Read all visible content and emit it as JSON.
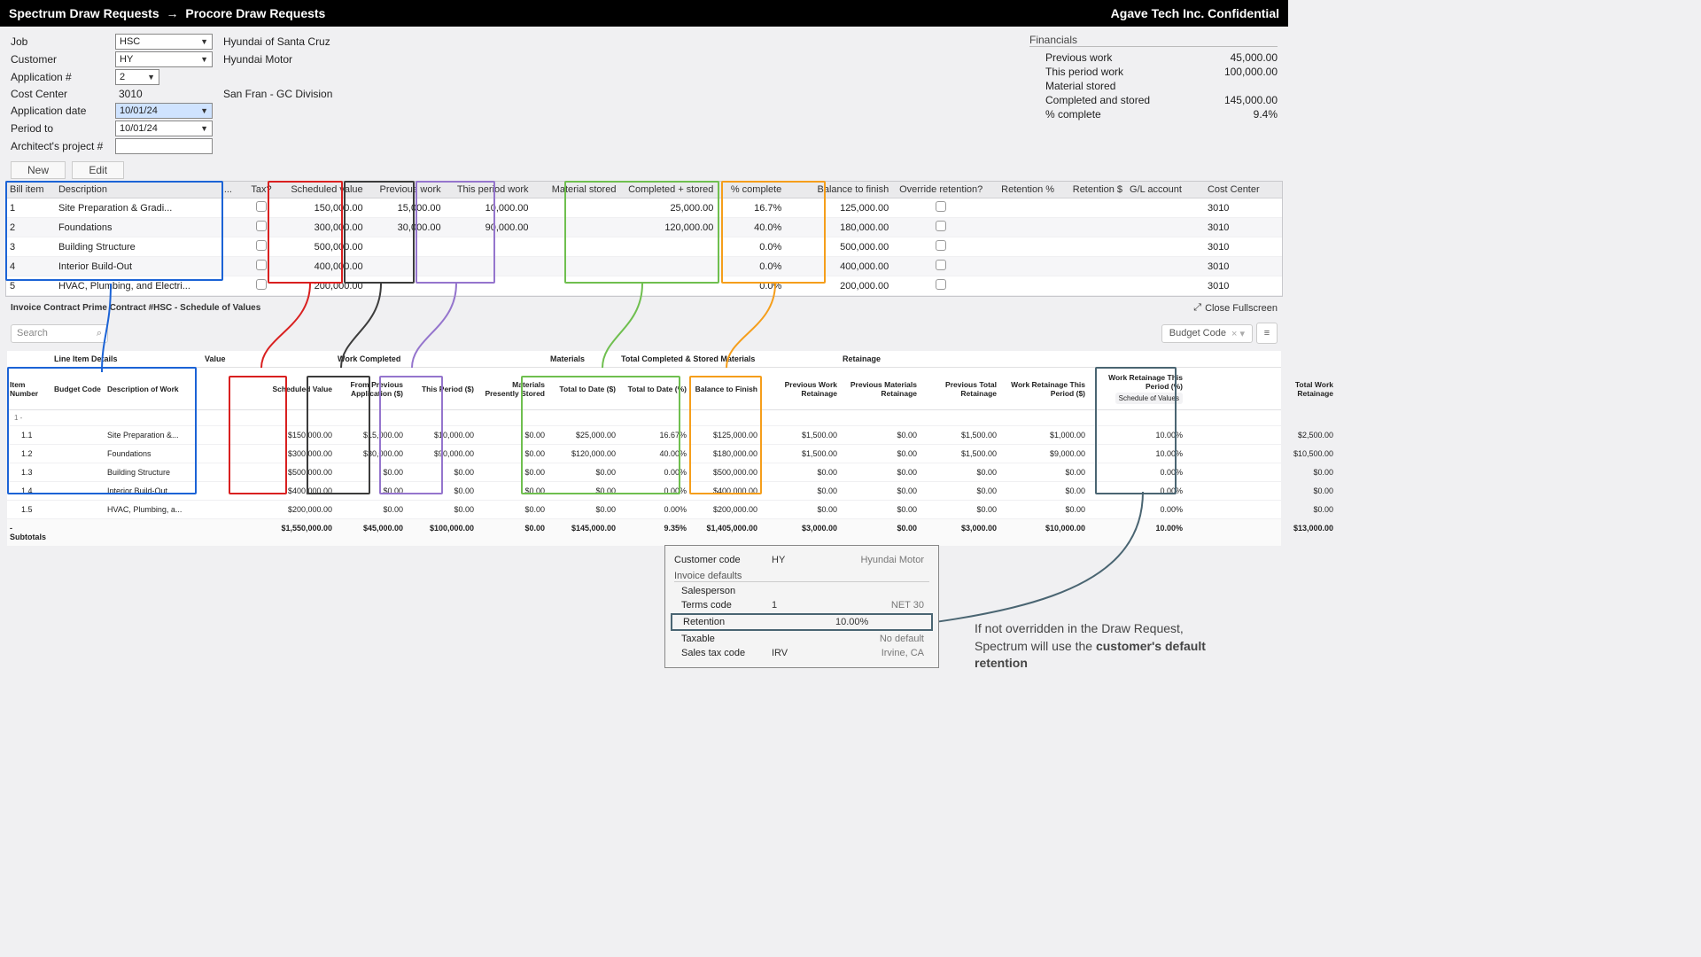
{
  "header": {
    "title_left": "Spectrum Draw Requests",
    "arrow": "→",
    "title_right": "Procore Draw Requests",
    "confidential": "Agave Tech Inc. Confidential"
  },
  "form": {
    "job_label": "Job",
    "job_value": "HSC",
    "job_desc": "Hyundai of Santa Cruz",
    "customer_label": "Customer",
    "customer_value": "HY",
    "customer_desc": "Hyundai Motor",
    "app_no_label": "Application #",
    "app_no_value": "2",
    "cost_center_label": "Cost Center",
    "cost_center_value": "3010",
    "cost_center_desc": "San Fran - GC Division",
    "app_date_label": "Application date",
    "app_date_value": "10/01/24",
    "period_to_label": "Period to",
    "period_to_value": "10/01/24",
    "arch_proj_label": "Architect's project #",
    "arch_proj_value": ""
  },
  "financials": {
    "title": "Financials",
    "previous_work_label": "Previous work",
    "previous_work_value": "45,000.00",
    "this_period_label": "This period work",
    "this_period_value": "100,000.00",
    "material_stored_label": "Material stored",
    "material_stored_value": "",
    "completed_stored_label": "Completed and stored",
    "completed_stored_value": "145,000.00",
    "pct_complete_label": "% complete",
    "pct_complete_value": "9.4%"
  },
  "buttons": {
    "new": "New",
    "edit": "Edit"
  },
  "spectrum_cols": {
    "bill_item": "Bill item",
    "description": "Description",
    "dots": "...",
    "tax": "Tax?",
    "scheduled_value": "Scheduled value",
    "previous_work": "Previous work",
    "this_period": "This period work",
    "material_stored": "Material stored",
    "completed_stored": "Completed + stored",
    "pct_complete": "% complete",
    "balance_finish": "Balance to finish",
    "override_ret": "Override retention?",
    "ret_pct": "Retention %",
    "ret_amt": "Retention $",
    "gl_account": "G/L account",
    "cost_center": "Cost Center"
  },
  "spectrum_rows": [
    {
      "n": "1",
      "desc": "Site Preparation & Gradi...",
      "sv": "150,000.00",
      "pw": "15,000.00",
      "tp": "10,000.00",
      "ms": "",
      "cs": "25,000.00",
      "pct": "16.7%",
      "bf": "125,000.00",
      "cc": "3010"
    },
    {
      "n": "2",
      "desc": "Foundations",
      "sv": "300,000.00",
      "pw": "30,000.00",
      "tp": "90,000.00",
      "ms": "",
      "cs": "120,000.00",
      "pct": "40.0%",
      "bf": "180,000.00",
      "cc": "3010"
    },
    {
      "n": "3",
      "desc": "Building Structure",
      "sv": "500,000.00",
      "pw": "",
      "tp": "",
      "ms": "",
      "cs": "",
      "pct": "0.0%",
      "bf": "500,000.00",
      "cc": "3010"
    },
    {
      "n": "4",
      "desc": "Interior Build-Out",
      "sv": "400,000.00",
      "pw": "",
      "tp": "",
      "ms": "",
      "cs": "",
      "pct": "0.0%",
      "bf": "400,000.00",
      "cc": "3010"
    },
    {
      "n": "5",
      "desc": "HVAC, Plumbing, and Electri...",
      "sv": "200,000.00",
      "pw": "",
      "tp": "",
      "ms": "",
      "cs": "",
      "pct": "0.0%",
      "bf": "200,000.00",
      "cc": "3010"
    }
  ],
  "sov_title": "Invoice Contract Prime Contract #HSC - Schedule of Values",
  "close_fullscreen": "Close Fullscreen",
  "search_placeholder": "Search",
  "budget_code_label": "Budget Code",
  "procore_groups": {
    "line_item_details": "Line Item Details",
    "value": "Value",
    "work_completed": "Work Completed",
    "materials": "Materials",
    "total_completed": "Total Completed & Stored Materials",
    "retainage": "Retainage"
  },
  "procore_cols": {
    "item_no": "Item Number",
    "budget_code": "Budget Code",
    "desc_work": "Description of Work",
    "scheduled_value": "Scheduled Value",
    "from_prev": "From Previous Application ($)",
    "this_period": "This Period ($)",
    "mat_stored": "Materials Presently Stored",
    "total_to_date_amt": "Total to Date ($)",
    "total_to_date_pct": "Total to Date (%)",
    "balance_finish": "Balance to Finish",
    "prev_work_ret": "Previous Work Retainage",
    "prev_mat_ret": "Previous Materials Retainage",
    "prev_total_ret": "Previous Total Retainage",
    "work_ret_tp_amt": "Work Retainage This Period ($)",
    "work_ret_tp_pct": "Work Retainage This Period (%)",
    "sov_chip": "Schedule of Values",
    "total_work_ret": "Total Work Retainage"
  },
  "procore_section": "1 -",
  "procore_rows": [
    {
      "n": "1.1",
      "desc": "Site Preparation &...",
      "sv": "$150,000.00",
      "fp": "$15,000.00",
      "tp": "$10,000.00",
      "ms": "$0.00",
      "ttd": "$25,000.00",
      "ttp": "16.67%",
      "bf": "$125,000.00",
      "pwr": "$1,500.00",
      "pmr": "$0.00",
      "ptr": "$1,500.00",
      "wrtp": "$1,000.00",
      "wrp": "10.00%",
      "twr": "$2,500.00"
    },
    {
      "n": "1.2",
      "desc": "Foundations",
      "sv": "$300,000.00",
      "fp": "$30,000.00",
      "tp": "$90,000.00",
      "ms": "$0.00",
      "ttd": "$120,000.00",
      "ttp": "40.00%",
      "bf": "$180,000.00",
      "pwr": "$1,500.00",
      "pmr": "$0.00",
      "ptr": "$1,500.00",
      "wrtp": "$9,000.00",
      "wrp": "10.00%",
      "twr": "$10,500.00"
    },
    {
      "n": "1.3",
      "desc": "Building Structure",
      "sv": "$500,000.00",
      "fp": "$0.00",
      "tp": "$0.00",
      "ms": "$0.00",
      "ttd": "$0.00",
      "ttp": "0.00%",
      "bf": "$500,000.00",
      "pwr": "$0.00",
      "pmr": "$0.00",
      "ptr": "$0.00",
      "wrtp": "$0.00",
      "wrp": "0.00%",
      "twr": "$0.00"
    },
    {
      "n": "1.4",
      "desc": "Interior Build-Out",
      "sv": "$400,000.00",
      "fp": "$0.00",
      "tp": "$0.00",
      "ms": "$0.00",
      "ttd": "$0.00",
      "ttp": "0.00%",
      "bf": "$400,000.00",
      "pwr": "$0.00",
      "pmr": "$0.00",
      "ptr": "$0.00",
      "wrtp": "$0.00",
      "wrp": "0.00%",
      "twr": "$0.00"
    },
    {
      "n": "1.5",
      "desc": "HVAC, Plumbing, a...",
      "sv": "$200,000.00",
      "fp": "$0.00",
      "tp": "$0.00",
      "ms": "$0.00",
      "ttd": "$0.00",
      "ttp": "0.00%",
      "bf": "$200,000.00",
      "pwr": "$0.00",
      "pmr": "$0.00",
      "ptr": "$0.00",
      "wrtp": "$0.00",
      "wrp": "0.00%",
      "twr": "$0.00"
    }
  ],
  "procore_subtotals": {
    "label": "- Subtotals",
    "sv": "$1,550,000.00",
    "fp": "$45,000.00",
    "tp": "$100,000.00",
    "ms": "$0.00",
    "ttd": "$145,000.00",
    "ttp": "9.35%",
    "bf": "$1,405,000.00",
    "pwr": "$3,000.00",
    "pmr": "$0.00",
    "ptr": "$3,000.00",
    "wrtp": "$10,000.00",
    "wrp": "10.00%",
    "twr": "$13,000.00"
  },
  "cust_popup": {
    "customer_code_label": "Customer code",
    "customer_code_value": "HY",
    "customer_name": "Hyundai Motor",
    "inv_defaults": "Invoice defaults",
    "salesperson_label": "Salesperson",
    "terms_label": "Terms code",
    "terms_value": "1",
    "terms_desc": "NET 30",
    "retention_label": "Retention",
    "retention_value": "10.00%",
    "taxable_label": "Taxable",
    "taxable_desc": "No default",
    "sales_tax_label": "Sales tax code",
    "sales_tax_value": "IRV",
    "sales_tax_desc": "Irvine, CA"
  },
  "annotation": {
    "line1": "If not overridden in the Draw Request,",
    "line2a": "Spectrum will use the ",
    "line2b": "customer's default retention"
  },
  "hl_colors": {
    "blue": "#1b63d6",
    "red": "#d92020",
    "dark": "#3c3c3c",
    "purple": "#9575cd",
    "green": "#6fbf4f",
    "orange": "#f59e1b",
    "slate": "#4a6572"
  }
}
